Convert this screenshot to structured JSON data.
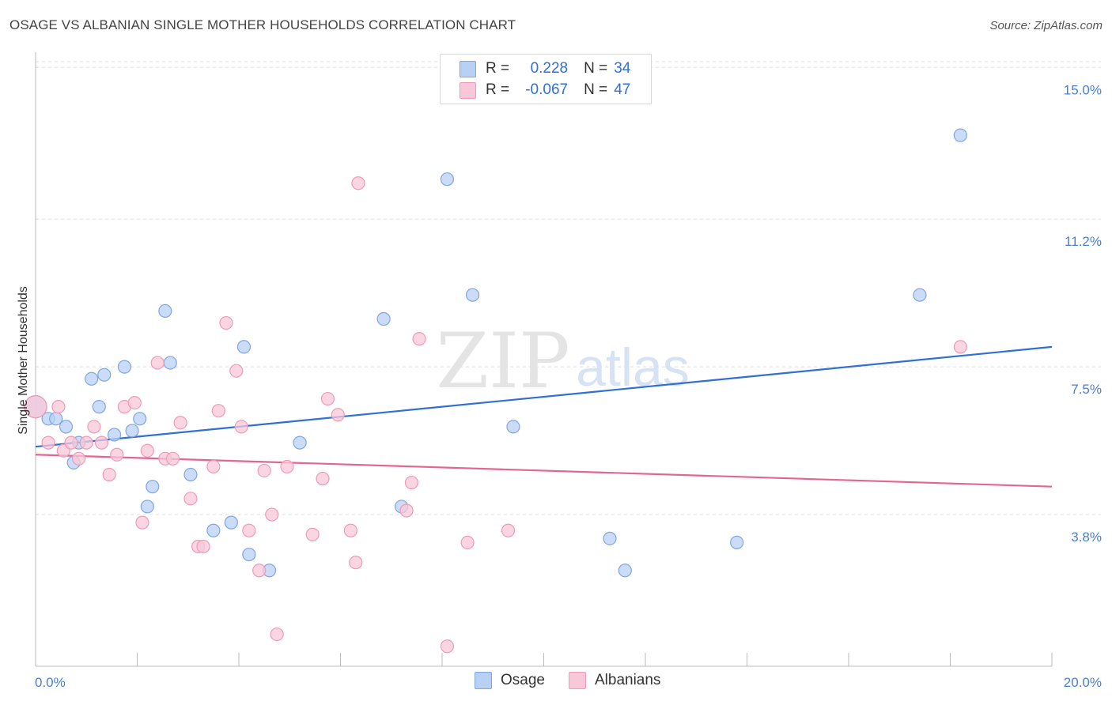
{
  "header": {
    "title": "OSAGE VS ALBANIAN SINGLE MOTHER HOUSEHOLDS CORRELATION CHART",
    "source": "Source: ZipAtlas.com"
  },
  "legend": {
    "rows": [
      {
        "r_label": "R =",
        "r_value": "0.228",
        "n_label": "N =",
        "n_value": "34"
      },
      {
        "r_label": "R =",
        "r_value": "-0.067",
        "n_label": "N =",
        "n_value": "47"
      }
    ]
  },
  "bottom_legend": [
    "Osage",
    "Albanians"
  ],
  "watermark": {
    "zip": "ZIP",
    "atlas": "atlas"
  },
  "colors": {
    "osage_fill": "#b9d0f5",
    "osage_stroke": "#7fa6e3",
    "osage_line": "#2f6fd6",
    "alb_fill": "#f9c8d8",
    "alb_stroke": "#ee9bb6",
    "alb_line": "#e2668f",
    "tick_text": "#4a7fd0",
    "grid": "#dedede"
  },
  "chart_data": {
    "type": "scatter",
    "title": "OSAGE VS ALBANIAN SINGLE MOTHER HOUSEHOLDS CORRELATION CHART",
    "xlabel": "",
    "ylabel": "Single Mother Households",
    "xlim": [
      0,
      20
    ],
    "ylim": [
      0,
      15.5
    ],
    "y_ticks": [
      3.8,
      7.5,
      11.2,
      15.0
    ],
    "y_tick_labels": [
      "3.8%",
      "7.5%",
      "11.2%",
      "15.0%"
    ],
    "x_tick_labels": [
      "0.0%",
      "20.0%"
    ],
    "grid": true,
    "series": [
      {
        "name": "Osage",
        "points": [
          [
            0.0,
            6.5
          ],
          [
            0.25,
            6.2
          ],
          [
            0.4,
            6.2
          ],
          [
            0.6,
            6.0
          ],
          [
            0.75,
            5.1
          ],
          [
            0.85,
            5.6
          ],
          [
            1.1,
            7.2
          ],
          [
            1.25,
            6.5
          ],
          [
            1.35,
            7.3
          ],
          [
            1.55,
            5.8
          ],
          [
            1.75,
            7.5
          ],
          [
            1.9,
            5.9
          ],
          [
            2.05,
            6.2
          ],
          [
            2.2,
            4.0
          ],
          [
            2.3,
            4.5
          ],
          [
            2.55,
            8.9
          ],
          [
            2.65,
            7.6
          ],
          [
            3.05,
            4.8
          ],
          [
            3.5,
            3.4
          ],
          [
            3.85,
            3.6
          ],
          [
            4.1,
            8.0
          ],
          [
            4.2,
            2.8
          ],
          [
            4.6,
            2.4
          ],
          [
            5.2,
            5.6
          ],
          [
            6.85,
            8.7
          ],
          [
            7.2,
            4.0
          ],
          [
            8.1,
            12.2
          ],
          [
            8.6,
            9.3
          ],
          [
            9.4,
            6.0
          ],
          [
            11.3,
            3.2
          ],
          [
            11.6,
            2.4
          ],
          [
            13.8,
            3.1
          ],
          [
            17.4,
            9.3
          ],
          [
            18.2,
            13.3
          ]
        ],
        "trend": {
          "x": [
            0,
            20
          ],
          "y": [
            5.5,
            8.0
          ]
        }
      },
      {
        "name": "Albanians",
        "points": [
          [
            0.0,
            6.5
          ],
          [
            0.25,
            5.6
          ],
          [
            0.45,
            6.5
          ],
          [
            0.55,
            5.4
          ],
          [
            0.7,
            5.6
          ],
          [
            0.85,
            5.2
          ],
          [
            1.0,
            5.6
          ],
          [
            1.15,
            6.0
          ],
          [
            1.3,
            5.6
          ],
          [
            1.45,
            4.8
          ],
          [
            1.6,
            5.3
          ],
          [
            1.75,
            6.5
          ],
          [
            1.95,
            6.6
          ],
          [
            2.1,
            3.6
          ],
          [
            2.2,
            5.4
          ],
          [
            2.4,
            7.6
          ],
          [
            2.55,
            5.2
          ],
          [
            2.7,
            5.2
          ],
          [
            2.85,
            6.1
          ],
          [
            3.05,
            4.2
          ],
          [
            3.2,
            3.0
          ],
          [
            3.3,
            3.0
          ],
          [
            3.5,
            5.0
          ],
          [
            3.6,
            6.4
          ],
          [
            3.75,
            8.6
          ],
          [
            3.95,
            7.4
          ],
          [
            4.05,
            6.0
          ],
          [
            4.2,
            3.4
          ],
          [
            4.4,
            2.4
          ],
          [
            4.5,
            4.9
          ],
          [
            4.65,
            3.8
          ],
          [
            4.75,
            0.8
          ],
          [
            4.95,
            5.0
          ],
          [
            5.45,
            3.3
          ],
          [
            5.65,
            4.7
          ],
          [
            5.75,
            6.7
          ],
          [
            5.95,
            6.3
          ],
          [
            6.2,
            3.4
          ],
          [
            6.3,
            2.6
          ],
          [
            6.35,
            12.1
          ],
          [
            7.3,
            3.9
          ],
          [
            7.4,
            4.6
          ],
          [
            7.55,
            8.2
          ],
          [
            8.1,
            0.5
          ],
          [
            8.5,
            3.1
          ],
          [
            9.3,
            3.4
          ],
          [
            18.2,
            8.0
          ]
        ],
        "trend": {
          "x": [
            0,
            20
          ],
          "y": [
            5.3,
            4.5
          ]
        }
      }
    ]
  }
}
